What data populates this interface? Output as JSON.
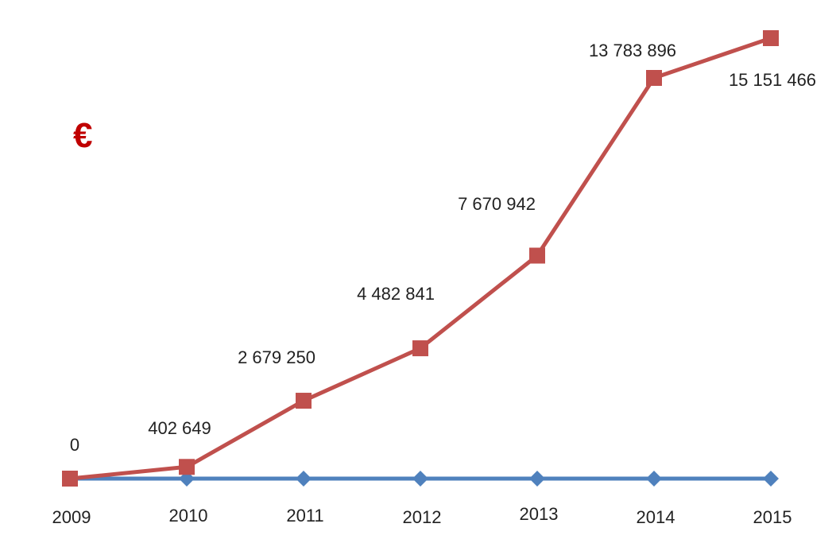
{
  "chart_data": {
    "type": "line",
    "unit_label": "€",
    "x": [
      "2009",
      "2010",
      "2011",
      "2012",
      "2013",
      "2014",
      "2015"
    ],
    "series": [
      {
        "values": [
          0,
          402649,
          2679250,
          4482841,
          7670942,
          13783896,
          15151466
        ],
        "labels": [
          "0",
          "402 649",
          "2 679 250",
          "4 482 841",
          "7 670 942",
          "13 783 896",
          "15 151 466"
        ],
        "color": "#c0504d",
        "marker": "square"
      },
      {
        "values": [
          0,
          0,
          0,
          0,
          0,
          0,
          0
        ],
        "color": "#4f81bd",
        "marker": "diamond"
      }
    ],
    "ylim": [
      0,
      15151466
    ],
    "grid": false,
    "legend": "none"
  }
}
